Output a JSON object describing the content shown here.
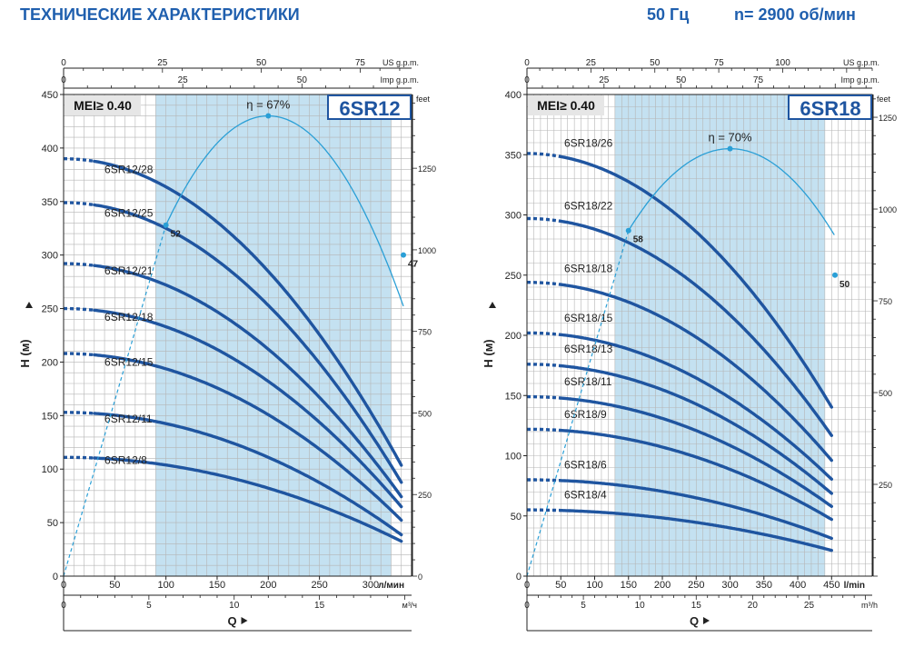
{
  "header": {
    "title": "ТЕХНИЧЕСКИЕ ХАРАКТЕРИСТИКИ",
    "frequency": "50 Гц",
    "speed": "n= 2900 об/мин"
  },
  "colors": {
    "curve": "#1f55a0",
    "efficiency": "#2a9fd6",
    "band": "#c4e1f1",
    "grid": "#b5b5b5",
    "header_text": "#1f5fae"
  },
  "chart_data": [
    {
      "type": "line",
      "model_badge": "6SR12",
      "mei_label": "MEI≥ 0.40",
      "ylabel": "H (м)",
      "xlabel": "Q",
      "x_unit_main": "л/мин",
      "x_unit_m3h": "м³/ч",
      "y_unit_right": "feet",
      "top_axis_labels": [
        "US g.p.m.",
        "Imp g.p.m."
      ],
      "xlim": [
        0,
        340
      ],
      "ylim": [
        0,
        450
      ],
      "xticks_main": [
        "0",
        "50",
        "100",
        "150",
        "200",
        "250",
        "300"
      ],
      "xticks_main_values": [
        0,
        50,
        100,
        150,
        200,
        250,
        300
      ],
      "xticks_m3h": [
        "0",
        "5",
        "10",
        "15"
      ],
      "yticks_left": [
        "0",
        "50",
        "100",
        "150",
        "200",
        "250",
        "300",
        "350",
        "400",
        "450"
      ],
      "yticks_right": [
        "0",
        "250",
        "500",
        "750",
        "1000",
        "1250"
      ],
      "xticks_us_gpm": [
        "0",
        "25",
        "50",
        "75"
      ],
      "xticks_imp_gpm": [
        "0",
        "25",
        "50"
      ],
      "band_range": [
        90,
        320
      ],
      "series": [
        {
          "name": "6SR12/28",
          "dash_x": [
            0,
            30
          ],
          "solid_x": [
            30,
            330
          ],
          "h0": 390,
          "k": 0.00263,
          "label_xy": [
            40,
            375
          ]
        },
        {
          "name": "6SR12/25",
          "dash_x": [
            0,
            30
          ],
          "solid_x": [
            30,
            330
          ],
          "h0": 349,
          "k": 0.0024,
          "label_xy": [
            40,
            334
          ]
        },
        {
          "name": "6SR12/21",
          "dash_x": [
            0,
            30
          ],
          "solid_x": [
            30,
            330
          ],
          "h0": 292,
          "k": 0.002,
          "label_xy": [
            40,
            280
          ]
        },
        {
          "name": "6SR12/18",
          "dash_x": [
            0,
            30
          ],
          "solid_x": [
            30,
            330
          ],
          "h0": 250,
          "k": 0.0017,
          "label_xy": [
            40,
            237
          ]
        },
        {
          "name": "6SR12/15",
          "dash_x": [
            0,
            30
          ],
          "solid_x": [
            30,
            330
          ],
          "h0": 208,
          "k": 0.00143,
          "label_xy": [
            40,
            195
          ]
        },
        {
          "name": "6SR12/11",
          "dash_x": [
            0,
            30
          ],
          "solid_x": [
            30,
            330
          ],
          "h0": 153,
          "k": 0.00105,
          "label_xy": [
            40,
            142
          ]
        },
        {
          "name": "6SR12/8",
          "dash_x": [
            0,
            30
          ],
          "solid_x": [
            30,
            330
          ],
          "h0": 111,
          "k": 0.00072,
          "label_xy": [
            40,
            103
          ]
        }
      ],
      "efficiency": {
        "label": "η = 67%",
        "peak_x": 200,
        "peak_h": 430,
        "points": [
          {
            "x": 100,
            "h": 328,
            "label": "52"
          },
          {
            "x": 200,
            "h": 430,
            "label": ""
          },
          {
            "x": 332,
            "h": 300,
            "label": "47"
          }
        ]
      }
    },
    {
      "type": "line",
      "model_badge": "6SR18",
      "mei_label": "MEI≥ 0.40",
      "ylabel": "H (м)",
      "xlabel": "Q",
      "x_unit_main": "l/min",
      "x_unit_m3h": "m³/h",
      "y_unit_right": "feet",
      "top_axis_labels": [
        "US g.p.m.",
        "Imp g.p.m."
      ],
      "xlim": [
        0,
        510
      ],
      "ylim": [
        0,
        400
      ],
      "xticks_main": [
        "0",
        "50",
        "100",
        "150",
        "200",
        "250",
        "300",
        "350",
        "400",
        "450"
      ],
      "xticks_main_values": [
        0,
        50,
        100,
        150,
        200,
        250,
        300,
        350,
        400,
        450
      ],
      "xticks_m3h": [
        "0",
        "5",
        "10",
        "15",
        "20",
        "25"
      ],
      "yticks_left": [
        "0",
        "50",
        "100",
        "150",
        "200",
        "250",
        "300",
        "350",
        "400"
      ],
      "yticks_right": [
        "250",
        "500",
        "750",
        "1000",
        "1250"
      ],
      "xticks_us_gpm": [
        "0",
        "25",
        "50",
        "75",
        "100"
      ],
      "xticks_imp_gpm": [
        "0",
        "25",
        "50",
        "75"
      ],
      "band_range": [
        130,
        440
      ],
      "series": [
        {
          "name": "6SR18/26",
          "dash_x": [
            0,
            50
          ],
          "solid_x": [
            50,
            450
          ],
          "h0": 351,
          "k": 0.00104,
          "label_xy": [
            55,
            355
          ]
        },
        {
          "name": "6SR18/22",
          "dash_x": [
            0,
            50
          ],
          "solid_x": [
            50,
            450
          ],
          "h0": 297,
          "k": 0.00089,
          "label_xy": [
            55,
            303
          ]
        },
        {
          "name": "6SR18/18",
          "dash_x": [
            0,
            50
          ],
          "solid_x": [
            50,
            450
          ],
          "h0": 244,
          "k": 0.00073,
          "label_xy": [
            55,
            251
          ]
        },
        {
          "name": "6SR18/15",
          "dash_x": [
            0,
            50
          ],
          "solid_x": [
            50,
            450
          ],
          "h0": 202,
          "k": 0.0006,
          "label_xy": [
            55,
            210
          ]
        },
        {
          "name": "6SR18/13",
          "dash_x": [
            0,
            50
          ],
          "solid_x": [
            50,
            450
          ],
          "h0": 176,
          "k": 0.00053,
          "label_xy": [
            55,
            184
          ]
        },
        {
          "name": "6SR18/11",
          "dash_x": [
            0,
            50
          ],
          "solid_x": [
            50,
            450
          ],
          "h0": 149,
          "k": 0.00045,
          "label_xy": [
            55,
            157
          ]
        },
        {
          "name": "6SR18/9",
          "dash_x": [
            0,
            50
          ],
          "solid_x": [
            50,
            450
          ],
          "h0": 122,
          "k": 0.00037,
          "label_xy": [
            55,
            130
          ]
        },
        {
          "name": "6SR18/6",
          "dash_x": [
            0,
            50
          ],
          "solid_x": [
            50,
            450
          ],
          "h0": 80,
          "k": 0.00024,
          "label_xy": [
            55,
            88
          ]
        },
        {
          "name": "6SR18/4",
          "dash_x": [
            0,
            50
          ],
          "solid_x": [
            50,
            450
          ],
          "h0": 55,
          "k": 0.000166,
          "label_xy": [
            55,
            63
          ]
        }
      ],
      "efficiency": {
        "label": "η = 70%",
        "peak_x": 300,
        "peak_h": 355,
        "points": [
          {
            "x": 150,
            "h": 287,
            "label": "58"
          },
          {
            "x": 300,
            "h": 355,
            "label": ""
          },
          {
            "x": 455,
            "h": 250,
            "label": "50"
          }
        ]
      }
    }
  ]
}
